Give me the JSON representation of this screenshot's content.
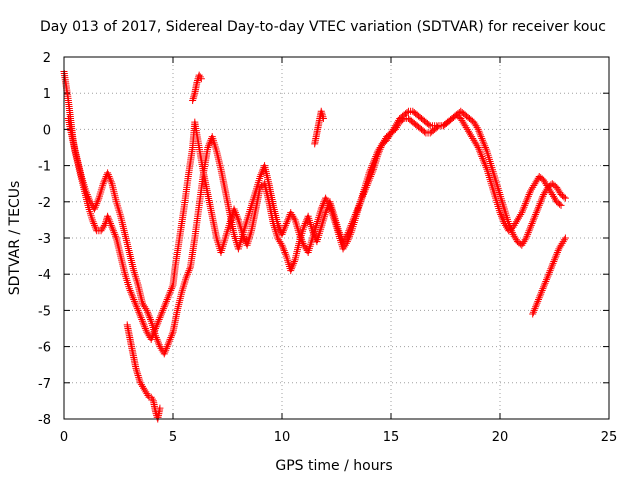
{
  "chart_data": {
    "type": "scatter",
    "title": "Day 013 of 2017, Sidereal Day-to-day VTEC variation (SDTVAR) for receiver kouc",
    "xlabel": "GPS time / hours",
    "ylabel": "SDTVAR / TECUs",
    "xlim": [
      0,
      25
    ],
    "ylim": [
      -8,
      2
    ],
    "xticks": [
      0,
      5,
      10,
      15,
      20,
      25
    ],
    "yticks": [
      -8,
      -7,
      -6,
      -5,
      -4,
      -3,
      -2,
      -1,
      0,
      1,
      2
    ],
    "grid": true,
    "marker": "plus",
    "color": "#ff0000",
    "series": [
      {
        "x": [
          0.0,
          0.1,
          0.2,
          0.3,
          0.4,
          0.5,
          0.7,
          0.9,
          1.1,
          1.3,
          1.5,
          1.7,
          1.9,
          2.0,
          2.2,
          2.4,
          2.6,
          2.8,
          3.0,
          3.2,
          3.4,
          3.6,
          3.8,
          4.0,
          4.2,
          4.4,
          4.6,
          4.8,
          5.0,
          5.1,
          5.3,
          5.5,
          5.7,
          5.9,
          6.0,
          6.2,
          6.4,
          6.6,
          6.8,
          7.0,
          7.2,
          7.4,
          7.6,
          7.8,
          8.0,
          8.2,
          8.4,
          8.6,
          8.8,
          9.0,
          9.2,
          9.4,
          9.6,
          9.8,
          10.0,
          10.2,
          10.4,
          10.6,
          10.8,
          11.0,
          11.2,
          11.4,
          11.6,
          11.8,
          12.0,
          12.2,
          12.4,
          12.6,
          12.8,
          13.0,
          13.2,
          13.4,
          13.6,
          13.8,
          14.0,
          14.2,
          14.4,
          14.6,
          14.8,
          15.0,
          15.2,
          15.4,
          15.6,
          15.8,
          16.0,
          16.2,
          16.4,
          16.6,
          16.8,
          17.0,
          17.2,
          17.4,
          17.6,
          17.8,
          18.0,
          18.2,
          18.4,
          18.6,
          18.8,
          19.0,
          19.2,
          19.4,
          19.6,
          19.8,
          20.0,
          20.2,
          20.4,
          20.6,
          20.8,
          21.0,
          21.2,
          21.4,
          21.6,
          21.8,
          22.0,
          22.2,
          22.4,
          22.6,
          22.8,
          23.0
        ],
        "y": [
          1.6,
          1.2,
          0.8,
          0.3,
          -0.2,
          -0.6,
          -1.1,
          -1.6,
          -2.1,
          -2.5,
          -2.8,
          -2.8,
          -2.6,
          -2.4,
          -2.7,
          -3.0,
          -3.5,
          -4.0,
          -4.4,
          -4.7,
          -5.0,
          -5.3,
          -5.6,
          -5.8,
          -5.5,
          -5.2,
          -4.9,
          -4.6,
          -4.3,
          -3.8,
          -3.0,
          -2.2,
          -1.3,
          -0.5,
          0.2,
          -0.5,
          -1.2,
          -1.8,
          -2.4,
          -3.0,
          -3.4,
          -3.0,
          -2.6,
          -2.2,
          -2.5,
          -2.9,
          -3.2,
          -2.8,
          -2.2,
          -1.6,
          -1.5,
          -2.0,
          -2.6,
          -3.0,
          -3.2,
          -3.5,
          -3.9,
          -3.6,
          -3.1,
          -2.7,
          -2.4,
          -2.8,
          -3.1,
          -2.7,
          -2.3,
          -2.0,
          -2.4,
          -2.8,
          -3.1,
          -2.9,
          -2.6,
          -2.3,
          -2.0,
          -1.7,
          -1.4,
          -1.1,
          -0.7,
          -0.4,
          -0.2,
          -0.1,
          0.1,
          0.3,
          0.4,
          0.5,
          0.5,
          0.4,
          0.3,
          0.2,
          0.1,
          0.1,
          0.1,
          0.1,
          0.2,
          0.3,
          0.4,
          0.5,
          0.4,
          0.3,
          0.2,
          0.0,
          -0.3,
          -0.6,
          -1.0,
          -1.4,
          -1.8,
          -2.2,
          -2.6,
          -2.9,
          -3.1,
          -3.2,
          -3.0,
          -2.7,
          -2.4,
          -2.1,
          -1.8,
          -1.6,
          -1.5,
          -1.6,
          -1.8,
          -1.9
        ]
      },
      {
        "x": [
          0.2,
          0.4,
          0.6,
          0.8,
          1.0,
          1.2,
          1.4,
          1.6,
          1.8,
          2.0,
          2.2,
          2.4,
          2.6,
          2.8,
          3.0,
          3.2,
          3.4,
          3.6,
          3.8,
          4.0,
          4.2,
          4.4,
          4.6,
          4.8,
          5.0,
          5.2,
          5.4,
          5.6,
          5.8,
          6.0,
          6.2,
          6.4,
          6.6,
          6.8,
          7.0,
          7.2,
          7.4,
          7.6,
          7.8,
          8.0,
          8.2,
          8.4,
          8.6,
          8.8,
          9.0,
          9.2,
          9.4,
          9.6,
          9.8,
          10.0,
          10.2,
          10.4,
          10.6,
          10.8,
          11.0,
          11.2,
          11.4,
          11.6,
          11.8,
          12.0,
          12.2,
          12.4,
          12.6,
          12.8,
          13.0,
          13.2,
          13.4,
          13.6,
          13.8,
          14.0,
          14.2,
          14.4,
          14.6,
          14.8,
          15.0,
          15.2,
          15.4,
          15.6,
          15.8,
          16.0,
          16.2,
          16.4,
          16.6,
          16.8,
          17.0,
          17.2,
          17.4,
          17.6,
          17.8,
          18.0,
          18.2,
          18.4,
          18.6,
          18.8,
          19.0,
          19.2,
          19.4,
          19.6,
          19.8,
          20.0,
          20.2,
          20.4,
          20.6,
          20.8,
          21.0,
          21.2,
          21.4,
          21.6,
          21.8,
          22.0,
          22.2,
          22.4,
          22.6,
          22.8
        ],
        "y": [
          0.3,
          -0.3,
          -0.8,
          -1.3,
          -1.7,
          -2.0,
          -2.2,
          -1.9,
          -1.5,
          -1.2,
          -1.5,
          -2.0,
          -2.4,
          -2.9,
          -3.4,
          -3.9,
          -4.3,
          -4.8,
          -5.0,
          -5.3,
          -5.7,
          -6.0,
          -6.2,
          -5.9,
          -5.6,
          -5.0,
          -4.5,
          -4.1,
          -3.8,
          -3.0,
          -2.1,
          -1.2,
          -0.5,
          -0.2,
          -0.6,
          -1.1,
          -1.7,
          -2.3,
          -2.9,
          -3.3,
          -2.9,
          -2.5,
          -2.1,
          -1.7,
          -1.3,
          -1.0,
          -1.5,
          -2.1,
          -2.6,
          -2.9,
          -2.6,
          -2.3,
          -2.5,
          -2.9,
          -3.2,
          -3.4,
          -3.0,
          -2.6,
          -2.2,
          -1.9,
          -2.1,
          -2.5,
          -2.9,
          -3.3,
          -3.1,
          -2.8,
          -2.4,
          -2.0,
          -1.6,
          -1.2,
          -0.9,
          -0.6,
          -0.4,
          -0.3,
          -0.1,
          0.0,
          0.2,
          0.3,
          0.3,
          0.2,
          0.1,
          0.0,
          -0.1,
          -0.1,
          0.0,
          0.1,
          0.1,
          0.2,
          0.3,
          0.4,
          0.3,
          0.1,
          -0.1,
          -0.3,
          -0.5,
          -0.8,
          -1.1,
          -1.5,
          -1.9,
          -2.3,
          -2.6,
          -2.8,
          -2.7,
          -2.5,
          -2.3,
          -2.0,
          -1.7,
          -1.5,
          -1.3,
          -1.4,
          -1.6,
          -1.8,
          -2.0,
          -2.1
        ]
      },
      {
        "x": [
          2.9,
          3.0,
          3.1,
          3.2,
          3.3,
          3.4,
          3.5,
          3.6,
          3.7,
          3.8,
          3.9,
          4.0,
          4.1,
          4.2,
          4.3,
          4.4
        ],
        "y": [
          -5.4,
          -5.7,
          -6.0,
          -6.3,
          -6.6,
          -6.8,
          -7.0,
          -7.1,
          -7.2,
          -7.3,
          -7.4,
          -7.4,
          -7.5,
          -7.8,
          -8.0,
          -7.7
        ]
      },
      {
        "x": [
          5.9,
          6.0,
          6.1,
          6.2,
          6.3
        ],
        "y": [
          0.8,
          1.0,
          1.3,
          1.5,
          1.4
        ]
      },
      {
        "x": [
          11.5,
          11.6,
          11.7,
          11.8,
          11.9
        ],
        "y": [
          -0.4,
          -0.1,
          0.2,
          0.5,
          0.3
        ]
      },
      {
        "x": [
          21.5,
          21.7,
          21.9,
          22.1,
          22.3,
          22.5,
          22.7,
          22.9,
          23.0
        ],
        "y": [
          -5.1,
          -4.8,
          -4.5,
          -4.2,
          -3.9,
          -3.6,
          -3.3,
          -3.1,
          -3.0
        ]
      }
    ]
  }
}
